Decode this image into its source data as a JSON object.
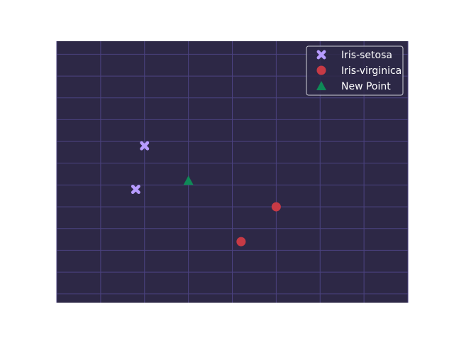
{
  "chart_data": {
    "type": "scatter",
    "title": "",
    "xlabel": "",
    "ylabel": "",
    "xlim": [
      4.0,
      8.0
    ],
    "ylim": [
      1.9,
      4.9
    ],
    "grid": true,
    "legend_position": "top-right",
    "colors": {
      "plot_background": "#2d2846",
      "grid": "#4b4280"
    },
    "series": [
      {
        "name": "Iris-setosa",
        "marker": "x-filled",
        "color": "#b79cff",
        "points": [
          {
            "x": 5.0,
            "y": 3.7
          },
          {
            "x": 4.9,
            "y": 3.2
          }
        ]
      },
      {
        "name": "Iris-virginica",
        "marker": "circle",
        "color": "#c73a45",
        "points": [
          {
            "x": 6.5,
            "y": 3.0
          },
          {
            "x": 6.1,
            "y": 2.6
          }
        ]
      },
      {
        "name": "New Point",
        "marker": "triangle",
        "color": "#0e8a57",
        "points": [
          {
            "x": 5.5,
            "y": 3.3
          }
        ]
      }
    ]
  }
}
